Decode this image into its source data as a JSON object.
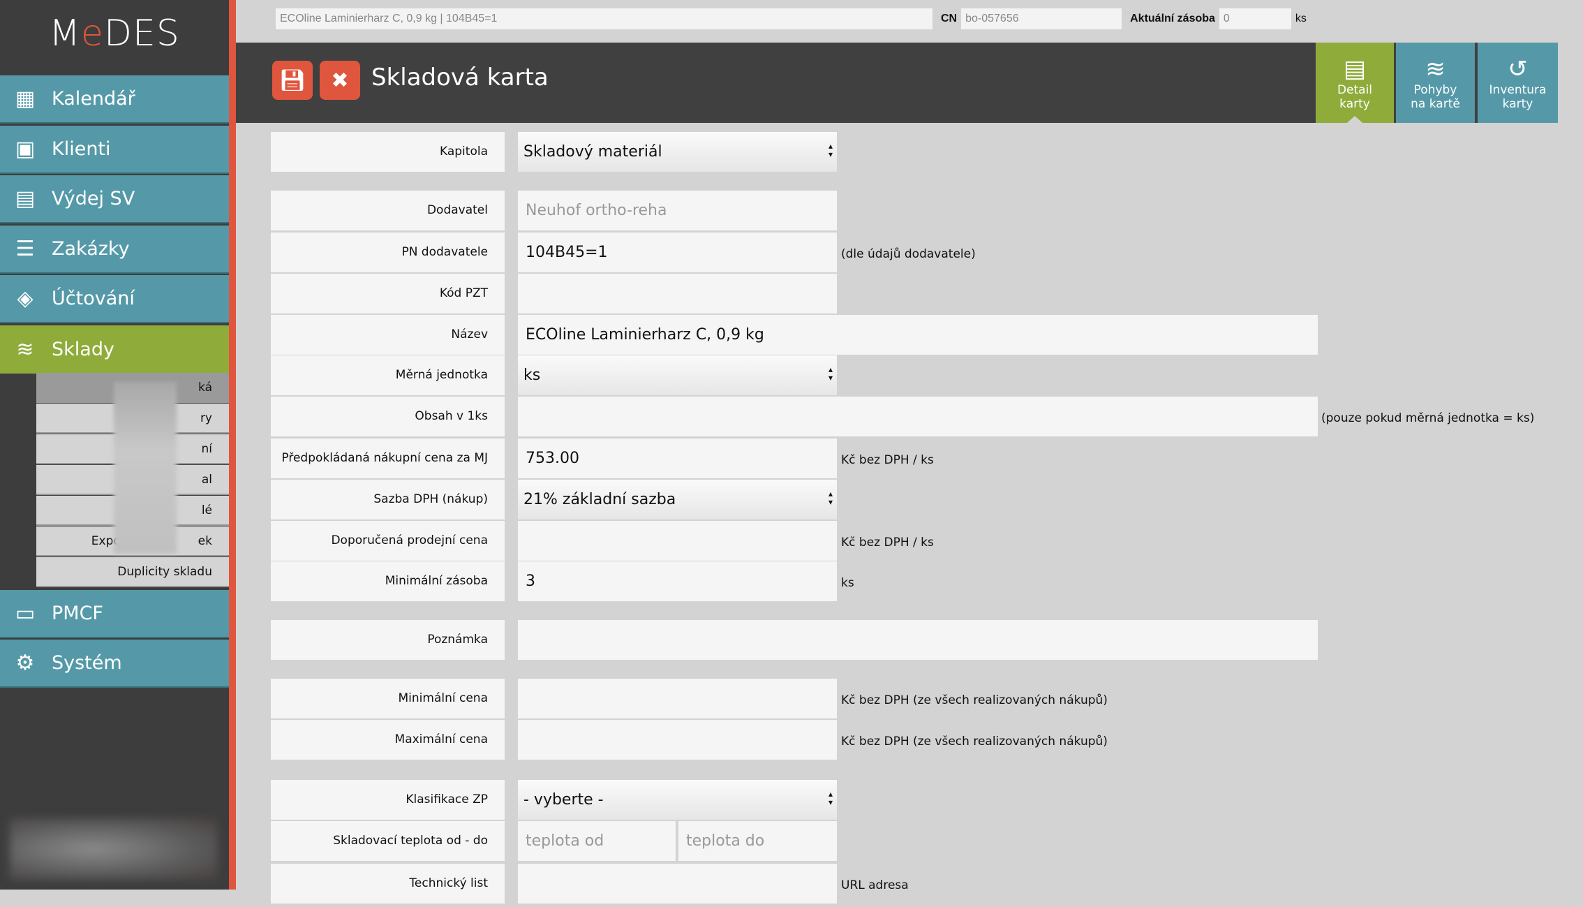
{
  "app": {
    "logo": "MeDES"
  },
  "sidebar": {
    "items": [
      {
        "label": "Kalendář",
        "icon": "calendar-icon"
      },
      {
        "label": "Klienti",
        "icon": "contact-icon"
      },
      {
        "label": "Výdej SV",
        "icon": "wallet-icon"
      },
      {
        "label": "Zakázky",
        "icon": "list-icon"
      },
      {
        "label": "Účtování",
        "icon": "tag-icon"
      },
      {
        "label": "Sklady",
        "icon": "stack-icon"
      },
      {
        "label": "PMCF",
        "icon": "id-card-icon"
      },
      {
        "label": "Systém",
        "icon": "gears-icon"
      }
    ],
    "submenu": [
      "ká",
      "ry",
      "ní",
      "al",
      "lé",
      "Export                  ek",
      "Duplicity skladu"
    ]
  },
  "topbar": {
    "product": "ECOline Laminierharz C, 0,9 kg | 104B45=1",
    "cn_label": "CN",
    "cn_value": "bo-057656",
    "stock_label": "Aktuální zásoba",
    "stock_value": "0",
    "stock_unit": "ks"
  },
  "header": {
    "title": "Skladová karta",
    "tabs": [
      {
        "label1": "Detail",
        "label2": "karty"
      },
      {
        "label1": "Pohyby",
        "label2": "na kartě"
      },
      {
        "label1": "Inventura",
        "label2": "karty"
      }
    ]
  },
  "form": {
    "kapitola": {
      "label": "Kapitola",
      "value": "Skladový materiál"
    },
    "dodavatel": {
      "label": "Dodavatel",
      "value": "Neuhof ortho-reha"
    },
    "pn": {
      "label": "PN dodavatele",
      "value": "104B45=1",
      "suffix": "(dle údajů dodavatele)"
    },
    "pzt": {
      "label": "Kód PZT",
      "value": ""
    },
    "nazev": {
      "label": "Název",
      "value": "ECOline Laminierharz C, 0,9 kg"
    },
    "mj": {
      "label": "Měrná jednotka",
      "value": "ks"
    },
    "obsah": {
      "label": "Obsah v 1ks",
      "value": "",
      "suffix": "(pouze pokud měrná jednotka = ks)"
    },
    "cena": {
      "label": "Předpokládaná nákupní cena za MJ",
      "value": "753.00",
      "suffix": "Kč bez DPH / ks"
    },
    "dph": {
      "label": "Sazba DPH (nákup)",
      "value": "21% základní sazba"
    },
    "prodejni": {
      "label": "Doporučená prodejní cena",
      "value": "",
      "suffix": "Kč bez DPH / ks"
    },
    "minzas": {
      "label": "Minimální zásoba",
      "value": "3",
      "suffix": "ks"
    },
    "poznamka": {
      "label": "Poznámka",
      "value": ""
    },
    "mincena": {
      "label": "Minimální cena",
      "value": "",
      "suffix": "Kč bez DPH (ze všech realizovaných nákupů)"
    },
    "maxcena": {
      "label": "Maximální cena",
      "value": "",
      "suffix": "Kč bez DPH (ze všech realizovaných nákupů)"
    },
    "klasifikace": {
      "label": "Klasifikace ZP",
      "value": "- vyberte -"
    },
    "teplota": {
      "label": "Skladovací teplota od - do",
      "from_placeholder": "teplota od",
      "to_placeholder": "teplota do"
    },
    "techlist": {
      "label": "Technický list",
      "value": "",
      "suffix": "URL adresa"
    }
  }
}
